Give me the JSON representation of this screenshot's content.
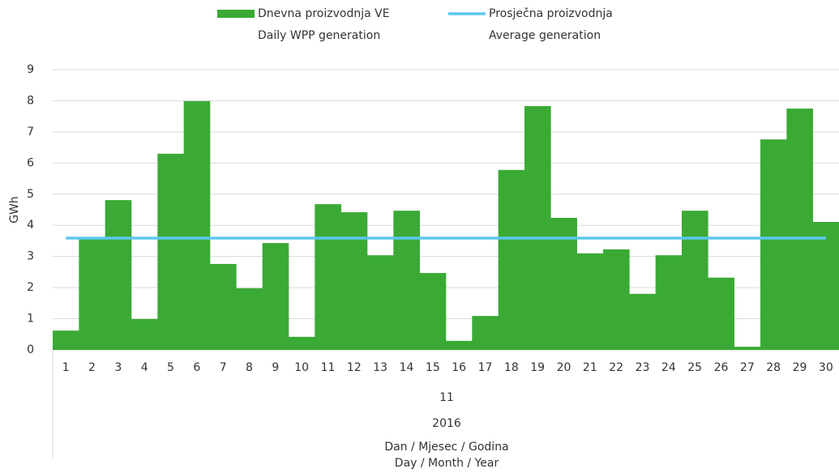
{
  "chart_data": {
    "type": "bar",
    "categories": [
      "1",
      "2",
      "3",
      "4",
      "5",
      "6",
      "7",
      "8",
      "9",
      "10",
      "11",
      "12",
      "13",
      "14",
      "15",
      "16",
      "17",
      "18",
      "19",
      "20",
      "21",
      "22",
      "23",
      "24",
      "25",
      "26",
      "27",
      "28",
      "29",
      "30"
    ],
    "month": "11",
    "year": "2016",
    "x_label": [
      "Dan / Mjesec / Godina",
      "Day / Month / Year"
    ],
    "y_label": "GWh",
    "series": [
      {
        "name": [
          "Dnevna proizvodnja VE",
          "Daily WPP generation"
        ],
        "type": "bar",
        "color": "#3aaa35",
        "values": [
          0.62,
          3.55,
          4.81,
          0.99,
          6.3,
          7.99,
          2.76,
          1.98,
          3.43,
          0.42,
          4.68,
          4.42,
          3.04,
          4.47,
          2.47,
          0.29,
          1.09,
          5.78,
          7.83,
          4.24,
          3.1,
          3.23,
          1.8,
          3.04,
          4.47,
          2.32,
          0.1,
          6.76,
          7.75,
          4.11
        ]
      },
      {
        "name": [
          "Prosječna proizvodnja",
          "Average generation"
        ],
        "type": "line",
        "color": "#5bc8f0",
        "values": [
          3.59,
          3.59,
          3.59,
          3.59,
          3.59,
          3.59,
          3.59,
          3.59,
          3.59,
          3.59,
          3.59,
          3.59,
          3.59,
          3.59,
          3.59,
          3.59,
          3.59,
          3.59,
          3.59,
          3.59,
          3.59,
          3.59,
          3.59,
          3.59,
          3.59,
          3.59,
          3.59,
          3.59,
          3.59,
          3.59
        ]
      }
    ],
    "ylim": [
      0,
      9
    ],
    "yticks": [
      0,
      1,
      2,
      3,
      4,
      5,
      6,
      7,
      8,
      9
    ],
    "grid": true
  }
}
